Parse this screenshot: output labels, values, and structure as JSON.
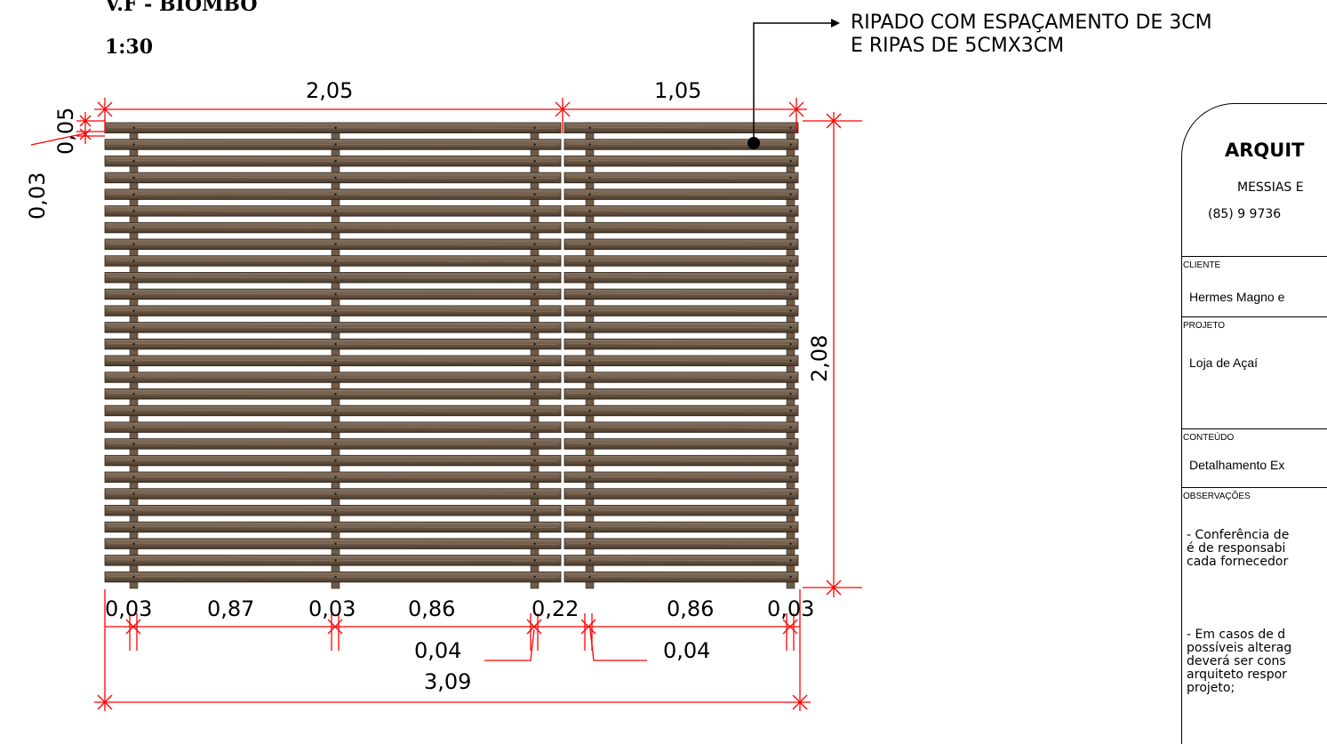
{
  "drawing": {
    "title": "V.F - BIOMBO",
    "scale": "1:30",
    "note_line1": "RIPADO COM ESPAÇAMENTO DE 3CM",
    "note_line2": "E RIPAS DE 5CMX3CM"
  },
  "dimensions": {
    "top_left": "2,05",
    "top_right": "1,05",
    "side_top": "0,05",
    "side_small": "0,03",
    "height": "2,08",
    "bottom_a": "0,03",
    "bottom_b": "0,87",
    "bottom_c": "0,03",
    "bottom_d": "0,86",
    "bottom_e": "0,22",
    "bottom_f": "0,86",
    "bottom_g": "0,03",
    "mid_left": "0,04",
    "mid_right": "0,04",
    "total": "3,09"
  },
  "title_block": {
    "office": "ARQUIT",
    "line1": "MESSIAS E",
    "line2": "(85) 9 9736",
    "cliente_label": "CLIENTE",
    "cliente_value": "Hermes Magno e",
    "projeto_label": "PROJETO",
    "projeto_value": "Loja de Açaí",
    "conteudo_label": "CONTEÚDO",
    "conteudo_value": "Detalhamento Ex",
    "obs_label": "OBSERVAÇÕES",
    "obs_text_1": "- Conferência de\né de responsabi\ncada fornecedor",
    "obs_text_2": "- Em casos de d\npossíveis alterag\ndeverá ser cons\narquiteto respor\nprojeto;"
  },
  "colors": {
    "dimension": "#ff0000",
    "wood_dark": "#5a4535",
    "wood_mid": "#7a6553",
    "wood_light": "#8c7866"
  }
}
